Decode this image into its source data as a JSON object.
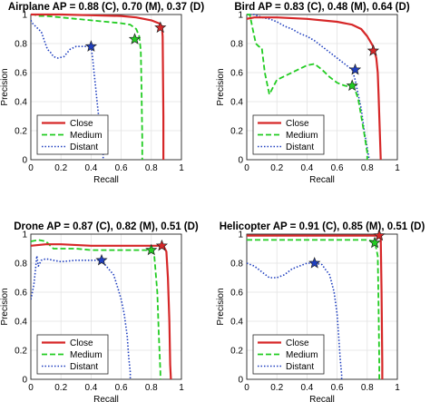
{
  "legend_order": [
    "Close",
    "Medium",
    "Distant"
  ],
  "colors": {
    "Close": "#d62728",
    "Medium": "#22cc22",
    "Distant": "#1f3fbf"
  },
  "styles": {
    "Close": "solid",
    "Medium": "dashed",
    "Distant": "dotted"
  },
  "chart_data": [
    {
      "type": "line",
      "title": "Airplane AP = 0.88 (C), 0.70 (M), 0.37 (D)",
      "xlabel": "Recall",
      "ylabel": "Precision",
      "xlim": [
        0,
        1
      ],
      "ylim": [
        0,
        1
      ],
      "xticks": [
        "0",
        "0.2",
        "0.4",
        "0.6",
        "0.8",
        "1"
      ],
      "yticks": [
        "0",
        "0.2",
        "0.4",
        "0.6",
        "0.8",
        "1"
      ],
      "grid": true,
      "legend_position": "bottom-left",
      "series": [
        {
          "name": "Close",
          "x": [
            0,
            0.05,
            0.2,
            0.4,
            0.6,
            0.7,
            0.8,
            0.85,
            0.87,
            0.875,
            0.88,
            0.88
          ],
          "y": [
            1.0,
            1.0,
            1.0,
            0.995,
            0.99,
            0.98,
            0.96,
            0.94,
            0.92,
            0.85,
            0.3,
            0.0
          ],
          "marker": {
            "x": 0.86,
            "y": 0.91
          }
        },
        {
          "name": "Medium",
          "x": [
            0,
            0.02,
            0.05,
            0.1,
            0.2,
            0.3,
            0.4,
            0.5,
            0.6,
            0.66,
            0.7,
            0.72,
            0.73,
            0.735,
            0.74,
            0.74
          ],
          "y": [
            1.0,
            1.0,
            0.99,
            0.99,
            0.98,
            0.97,
            0.96,
            0.95,
            0.94,
            0.93,
            0.9,
            0.85,
            0.75,
            0.5,
            0.15,
            0.0
          ],
          "marker": {
            "x": 0.69,
            "y": 0.83
          }
        },
        {
          "name": "Distant",
          "x": [
            0,
            0.01,
            0.03,
            0.05,
            0.07,
            0.09,
            0.11,
            0.13,
            0.15,
            0.18,
            0.22,
            0.26,
            0.3,
            0.34,
            0.38,
            0.4,
            0.41,
            0.42,
            0.43,
            0.44,
            0.45,
            0.46,
            0.47,
            0.48,
            0.48
          ],
          "y": [
            0.96,
            0.94,
            0.92,
            0.9,
            0.88,
            0.82,
            0.76,
            0.74,
            0.71,
            0.7,
            0.71,
            0.76,
            0.78,
            0.78,
            0.78,
            0.78,
            0.7,
            0.6,
            0.5,
            0.4,
            0.3,
            0.2,
            0.1,
            0.04,
            0.0
          ],
          "marker": {
            "x": 0.4,
            "y": 0.78
          }
        }
      ]
    },
    {
      "type": "line",
      "title": "Bird AP = 0.83 (C), 0.48 (M), 0.64 (D)",
      "xlabel": "Recall",
      "ylabel": "Precision",
      "xlim": [
        0,
        1
      ],
      "ylim": [
        0,
        1
      ],
      "xticks": [
        "0",
        "0.2",
        "0.4",
        "0.6",
        "0.8",
        "1"
      ],
      "yticks": [
        "0",
        "0.2",
        "0.4",
        "0.6",
        "0.8",
        "1"
      ],
      "grid": true,
      "legend_position": "bottom-left",
      "series": [
        {
          "name": "Close",
          "x": [
            0,
            0.05,
            0.2,
            0.4,
            0.6,
            0.7,
            0.76,
            0.8,
            0.84,
            0.86,
            0.87,
            0.875,
            0.88,
            0.885,
            0.89
          ],
          "y": [
            0.97,
            0.98,
            0.98,
            0.97,
            0.95,
            0.93,
            0.9,
            0.85,
            0.78,
            0.7,
            0.6,
            0.45,
            0.3,
            0.15,
            0.0
          ],
          "marker": {
            "x": 0.84,
            "y": 0.75
          }
        },
        {
          "name": "Medium",
          "x": [
            0,
            0.02,
            0.04,
            0.06,
            0.08,
            0.1,
            0.12,
            0.15,
            0.2,
            0.3,
            0.4,
            0.45,
            0.5,
            0.55,
            0.6,
            0.65,
            0.7,
            0.72,
            0.74,
            0.76,
            0.78,
            0.8,
            0.8
          ],
          "y": [
            1.0,
            1.0,
            0.9,
            0.8,
            0.78,
            0.77,
            0.6,
            0.45,
            0.55,
            0.6,
            0.65,
            0.66,
            0.62,
            0.57,
            0.53,
            0.51,
            0.5,
            0.48,
            0.42,
            0.3,
            0.18,
            0.05,
            0.0
          ],
          "marker": {
            "x": 0.7,
            "y": 0.51
          }
        },
        {
          "name": "Distant",
          "x": [
            0,
            0.05,
            0.1,
            0.15,
            0.2,
            0.25,
            0.3,
            0.35,
            0.4,
            0.45,
            0.5,
            0.55,
            0.6,
            0.65,
            0.7,
            0.72,
            0.74,
            0.76,
            0.78,
            0.8,
            0.81,
            0.81
          ],
          "y": [
            1.0,
            1.0,
            0.98,
            0.97,
            0.95,
            0.92,
            0.9,
            0.87,
            0.85,
            0.82,
            0.78,
            0.74,
            0.7,
            0.66,
            0.62,
            0.55,
            0.45,
            0.35,
            0.2,
            0.08,
            0.02,
            0.0
          ],
          "marker": {
            "x": 0.72,
            "y": 0.62
          }
        }
      ]
    },
    {
      "type": "line",
      "title": "Drone AP = 0.87 (C), 0.82 (M), 0.51 (D)",
      "xlabel": "Recall",
      "ylabel": "Precision",
      "xlim": [
        0,
        1
      ],
      "ylim": [
        0,
        1
      ],
      "xticks": [
        "0",
        "0.2",
        "0.4",
        "0.6",
        "0.8",
        "1"
      ],
      "yticks": [
        "0",
        "0.2",
        "0.4",
        "0.6",
        "0.8",
        "1"
      ],
      "grid": true,
      "legend_position": "bottom-left",
      "series": [
        {
          "name": "Close",
          "x": [
            0,
            0.1,
            0.2,
            0.4,
            0.6,
            0.8,
            0.85,
            0.88,
            0.9,
            0.91,
            0.92,
            0.925,
            0.93
          ],
          "y": [
            0.92,
            0.93,
            0.93,
            0.92,
            0.92,
            0.92,
            0.92,
            0.92,
            0.88,
            0.7,
            0.4,
            0.1,
            0.0
          ],
          "marker": {
            "x": 0.87,
            "y": 0.92
          }
        },
        {
          "name": "Medium",
          "x": [
            0,
            0.05,
            0.1,
            0.15,
            0.2,
            0.3,
            0.4,
            0.5,
            0.6,
            0.7,
            0.78,
            0.8,
            0.82,
            0.84,
            0.85,
            0.86,
            0.86
          ],
          "y": [
            0.95,
            0.96,
            0.95,
            0.9,
            0.9,
            0.9,
            0.89,
            0.89,
            0.89,
            0.89,
            0.89,
            0.89,
            0.85,
            0.6,
            0.3,
            0.05,
            0.0
          ],
          "marker": {
            "x": 0.8,
            "y": 0.89
          }
        },
        {
          "name": "Distant",
          "x": [
            0,
            0.01,
            0.02,
            0.03,
            0.04,
            0.05,
            0.07,
            0.1,
            0.15,
            0.2,
            0.3,
            0.4,
            0.47,
            0.5,
            0.55,
            0.58,
            0.6,
            0.62,
            0.64,
            0.65,
            0.66,
            0.66
          ],
          "y": [
            0.55,
            0.6,
            0.65,
            0.75,
            0.85,
            0.78,
            0.82,
            0.83,
            0.82,
            0.81,
            0.82,
            0.82,
            0.82,
            0.78,
            0.72,
            0.62,
            0.55,
            0.45,
            0.3,
            0.15,
            0.05,
            0.0
          ],
          "marker": {
            "x": 0.47,
            "y": 0.82
          }
        }
      ]
    },
    {
      "type": "line",
      "title": "Helicopter AP = 0.91 (C), 0.85 (M), 0.51 (D)",
      "xlabel": "Recall",
      "ylabel": "Precision",
      "xlim": [
        0,
        1
      ],
      "ylim": [
        0,
        1
      ],
      "xticks": [
        "0",
        "0.2",
        "0.4",
        "0.6",
        "0.8",
        "1"
      ],
      "yticks": [
        "0",
        "0.2",
        "0.4",
        "0.6",
        "0.8",
        "1"
      ],
      "grid": true,
      "legend_position": "bottom-left",
      "series": [
        {
          "name": "Close",
          "x": [
            0,
            0.2,
            0.4,
            0.6,
            0.8,
            0.87,
            0.89,
            0.895,
            0.9,
            0.9
          ],
          "y": [
            0.99,
            0.99,
            0.99,
            0.99,
            0.99,
            0.99,
            0.97,
            0.6,
            0.1,
            0.0
          ],
          "marker": {
            "x": 0.88,
            "y": 0.99
          }
        },
        {
          "name": "Medium",
          "x": [
            0,
            0.2,
            0.4,
            0.6,
            0.8,
            0.85,
            0.87,
            0.875,
            0.88,
            0.88
          ],
          "y": [
            0.96,
            0.96,
            0.96,
            0.96,
            0.96,
            0.95,
            0.85,
            0.5,
            0.1,
            0.0
          ],
          "marker": {
            "x": 0.85,
            "y": 0.94
          }
        },
        {
          "name": "Distant",
          "x": [
            0,
            0.05,
            0.1,
            0.15,
            0.2,
            0.25,
            0.3,
            0.35,
            0.4,
            0.45,
            0.5,
            0.52,
            0.55,
            0.58,
            0.6,
            0.61,
            0.62,
            0.63,
            0.63
          ],
          "y": [
            0.8,
            0.78,
            0.74,
            0.7,
            0.7,
            0.72,
            0.76,
            0.78,
            0.8,
            0.8,
            0.79,
            0.76,
            0.72,
            0.6,
            0.45,
            0.3,
            0.15,
            0.03,
            0.0
          ],
          "marker": {
            "x": 0.45,
            "y": 0.8
          }
        }
      ]
    }
  ]
}
